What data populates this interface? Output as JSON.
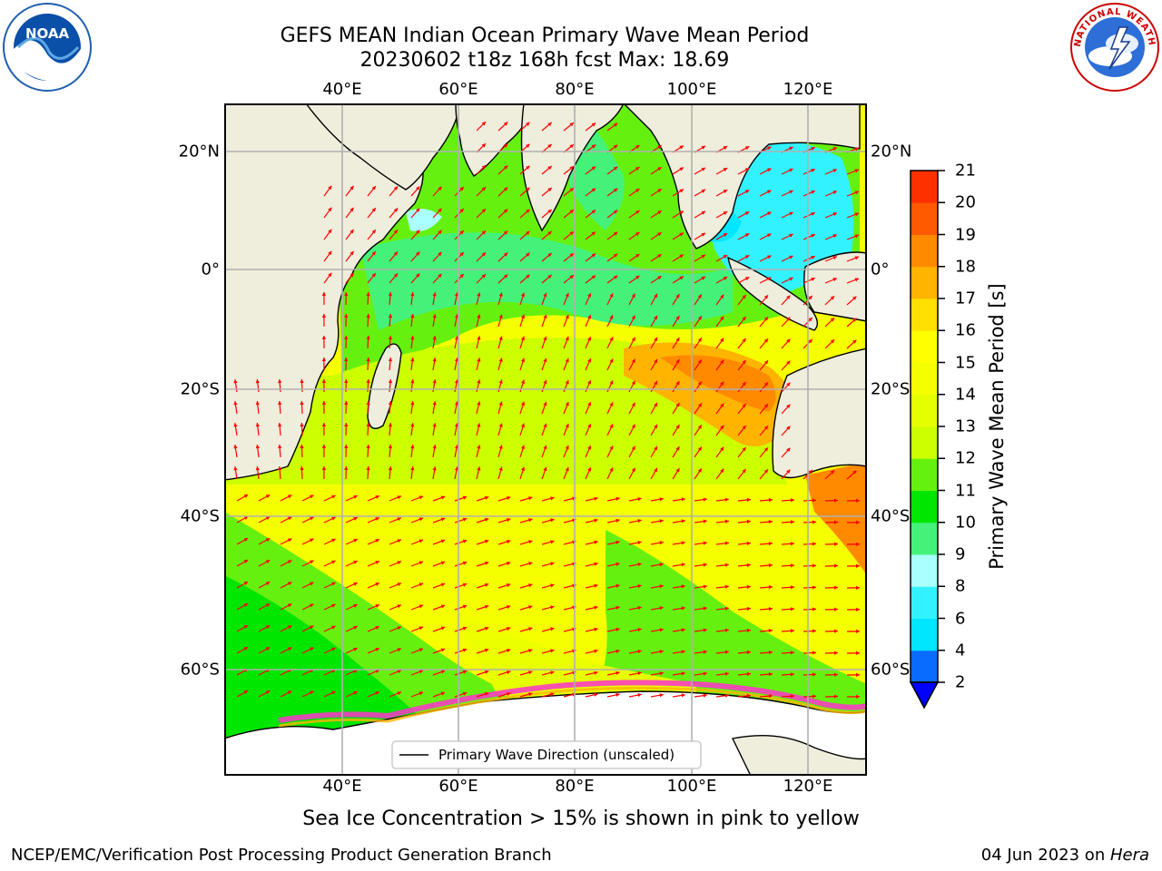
{
  "title": {
    "line1": "GEFS MEAN Indian Ocean Primary Wave Mean Period",
    "line2": "20230602 t18z 168h fcst   Max: 18.69"
  },
  "logos": {
    "left": {
      "icon": "noaa-logo",
      "text": "NOAA"
    },
    "right": {
      "icon": "nws-logo",
      "text": "NATIONAL WEATHER SERVICE"
    }
  },
  "map": {
    "lon_ticks": [
      "40°E",
      "60°E",
      "80°E",
      "100°E",
      "120°E"
    ],
    "lat_ticks": [
      "20°N",
      "0°",
      "20°S",
      "40°S",
      "60°S"
    ],
    "legend": "Primary Wave Direction (unscaled)",
    "colors": {
      "land": "#efeddc",
      "arrows": "#ff0000",
      "sea_ice": "#ff33cc",
      "grid": "#b0b0b0"
    }
  },
  "colorbar": {
    "label": "Primary Wave Mean Period [s]",
    "ticks": [
      "2",
      "4",
      "6",
      "8",
      "9",
      "10",
      "11",
      "12",
      "13",
      "14",
      "15",
      "16",
      "17",
      "18",
      "19",
      "20",
      "21"
    ],
    "colors": [
      "#0a6cff",
      "#00e6ff",
      "#33f2ff",
      "#aaffff",
      "#44f27a",
      "#00e600",
      "#66f010",
      "#ccff00",
      "#e6ff00",
      "#f5ff00",
      "#ffff00",
      "#ffe000",
      "#ffb400",
      "#ff8a00",
      "#ff5a00",
      "#ff3000",
      "#ff0000"
    ]
  },
  "notes": {
    "ice": "Sea Ice Concentration > 15% is shown in pink to yellow",
    "footer_left": "NCEP/EMC/Verification Post Processing Product Generation Branch",
    "footer_date": "04 Jun 2023 on ",
    "footer_host": "Hera"
  }
}
